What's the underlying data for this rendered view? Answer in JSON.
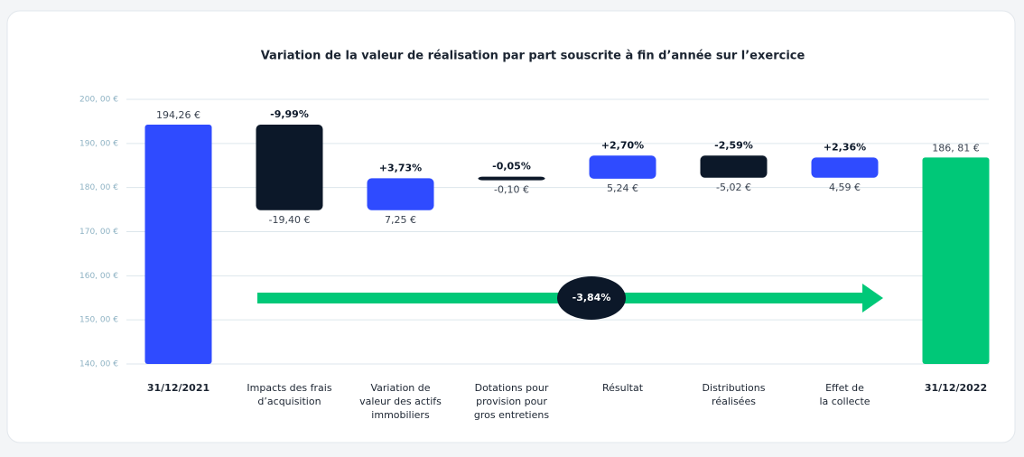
{
  "chart_data": {
    "type": "waterfall",
    "title": "Variation de la valeur de réalisation par part souscrite à fin d’année sur l’exercice",
    "categories": [
      "31/12/2021",
      "Impacts des frais\nd’acquisition",
      "Variation de\nvaleur des actifs\nimmobiliers",
      "Dotations pour\nprovision pour\ngros entretiens",
      "Résultat",
      "Distributions\nréalisées",
      "Effet de\nla collecte",
      "31/12/2022"
    ],
    "values": [
      194.26,
      -19.4,
      7.25,
      -0.1,
      5.24,
      -5.02,
      4.59,
      186.81
    ],
    "value_labels": [
      "194,26 €",
      "-19,40 €",
      "7,25 €",
      "-0,10 €",
      "5,24 €",
      "-5,02 €",
      "4,59 €",
      "186, 81 €"
    ],
    "percent_labels": [
      null,
      "-9,99%",
      "+3,73%",
      "-0,05%",
      "+2,70%",
      "-2,59%",
      "+2,36%",
      null
    ],
    "totals": [
      true,
      false,
      false,
      false,
      false,
      false,
      false,
      true
    ],
    "colors": [
      "#2f4bff",
      "#0c1829",
      "#2f4bff",
      "#0c1829",
      "#2f4bff",
      "#0c1829",
      "#2f4bff",
      "#00c878"
    ],
    "annotation": "-3,84%",
    "ylim": [
      140,
      200
    ],
    "yticks": [
      {
        "value": 140,
        "label": "140, 00 €"
      },
      {
        "value": 150,
        "label": "150, 00 €"
      },
      {
        "value": 160,
        "label": "160, 00 €"
      },
      {
        "value": 170,
        "label": "170, 00 €"
      },
      {
        "value": 180,
        "label": "180, 00 €"
      },
      {
        "value": 190,
        "label": "190, 00 €"
      },
      {
        "value": 200,
        "label": "200, 00 €"
      }
    ],
    "grid": true
  }
}
